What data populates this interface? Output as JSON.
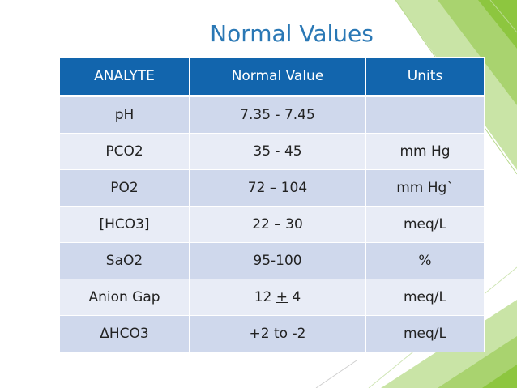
{
  "slide": {
    "title": "Normal Values"
  },
  "table": {
    "headers": [
      "ANALYTE",
      "Normal Value",
      "Units"
    ],
    "rows": [
      {
        "analyte": "pH",
        "value": "7.35 - 7.45",
        "units": ""
      },
      {
        "analyte": "PCO2",
        "value": "35 - 45",
        "units": "mm Hg"
      },
      {
        "analyte": "PO2",
        "value": "72 – 104",
        "units": "mm Hg`"
      },
      {
        "analyte": "[HCO3]",
        "value": "22 – 30",
        "units": "meq/L"
      },
      {
        "analyte": "SaO2",
        "value": "95-100",
        "units": "%"
      },
      {
        "analyte": "Anion Gap",
        "value_prefix": "12 ",
        "value_pm": "+",
        "value_suffix": " 4",
        "units": "meq/L"
      },
      {
        "analyte": "ΔHCO3",
        "value": "+2 to -2",
        "units": "meq/L"
      }
    ]
  },
  "colors": {
    "title": "#2a78b5",
    "header_bg": "#1265ad",
    "row_dark": "#cfd8ec",
    "row_light": "#e8ecf6",
    "accent_green": "#8dc63f"
  }
}
